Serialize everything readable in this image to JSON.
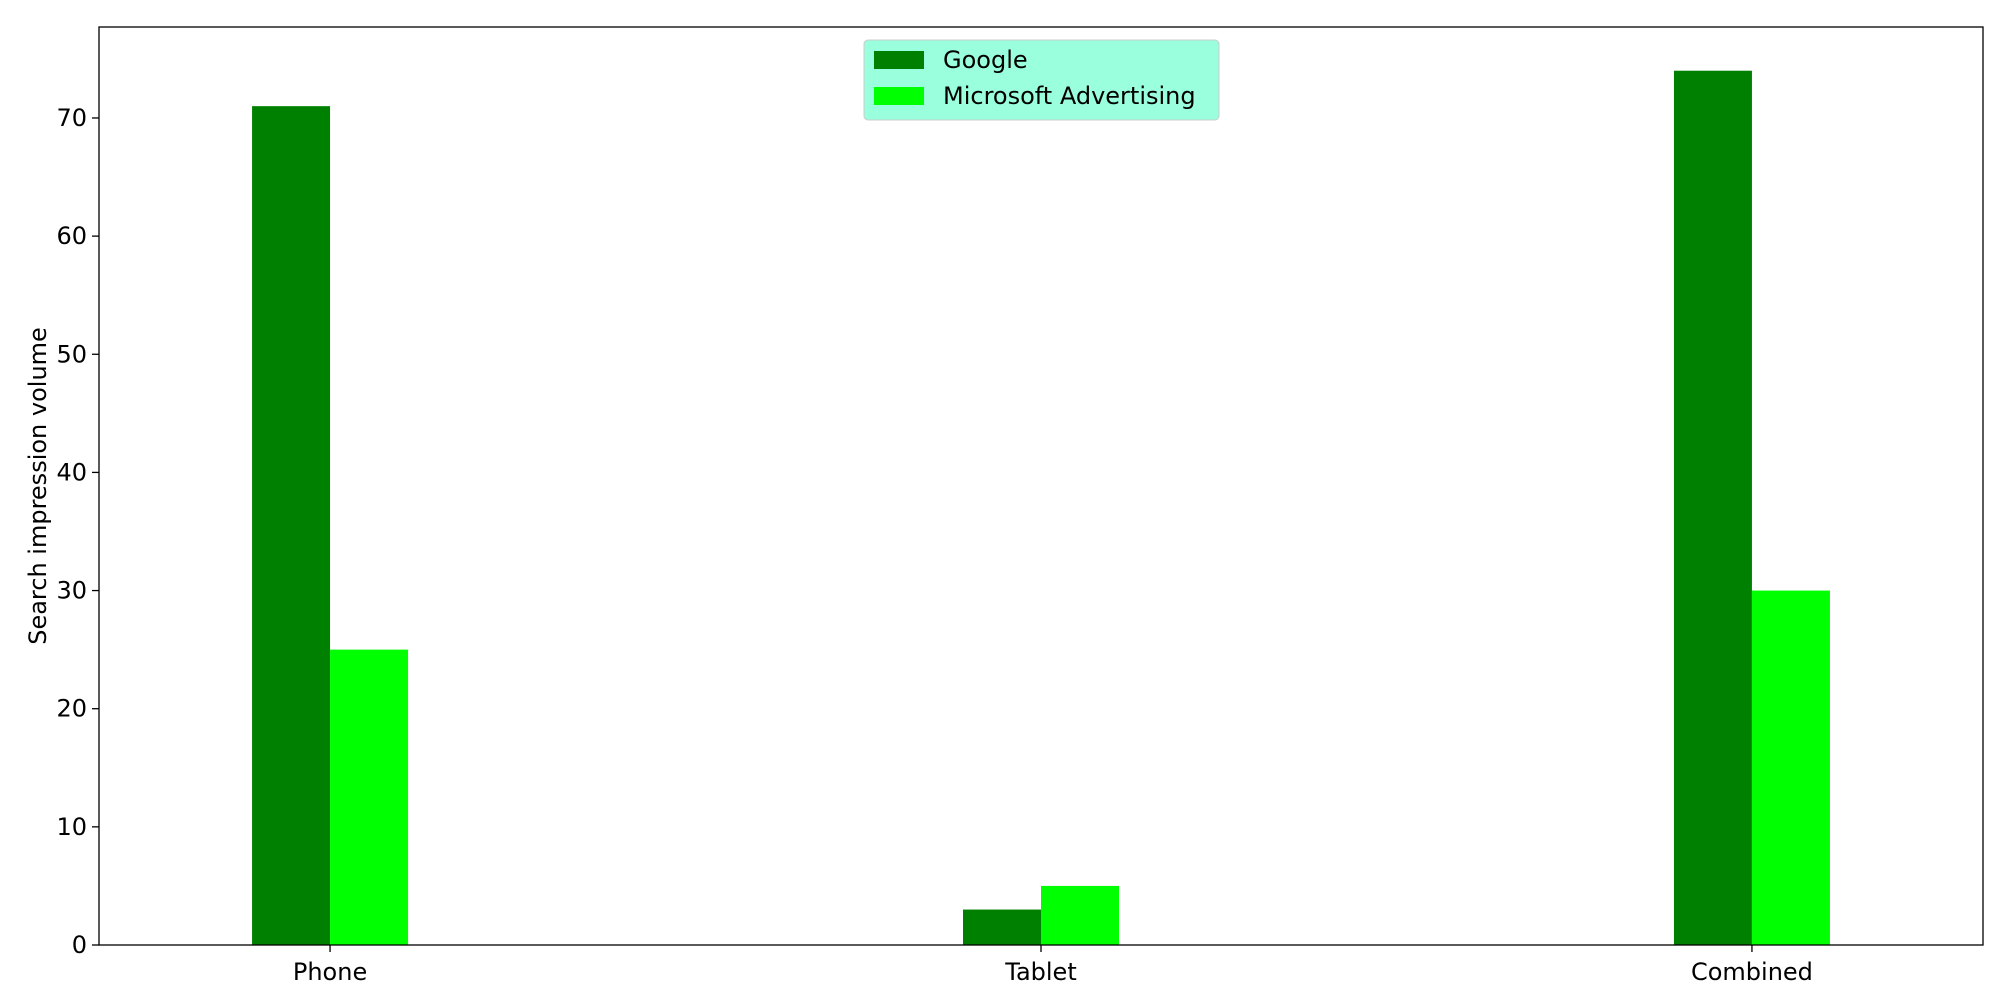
{
  "chart_data": {
    "type": "bar",
    "categories": [
      "Phone",
      "Tablet",
      "Combined"
    ],
    "series": [
      {
        "name": "Google",
        "color": "#008000",
        "values": [
          71,
          3,
          74
        ]
      },
      {
        "name": "Microsoft Advertising",
        "color": "#00ff00",
        "values": [
          25,
          5,
          30
        ]
      }
    ],
    "ylabel": "Search impression volume",
    "xlabel": "",
    "ylim": [
      0,
      77.7
    ],
    "yticks": [
      0,
      10,
      20,
      30,
      40,
      50,
      60,
      70
    ],
    "grid": false,
    "legend": {
      "placement": "upper-center",
      "background": "#99ffdd"
    }
  }
}
